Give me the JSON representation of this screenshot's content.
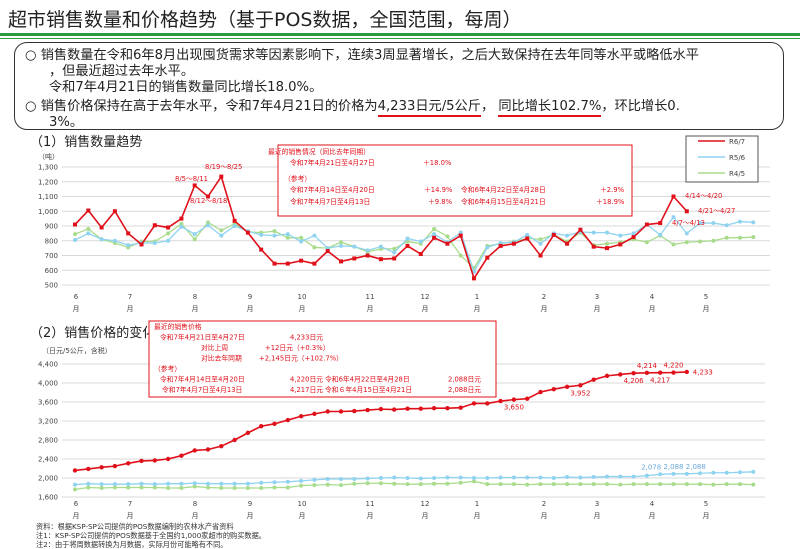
{
  "header": {
    "title": "超市销售数量和价格趋势（基于POS数据，全国范围，每周）"
  },
  "summary": {
    "bullet": "○",
    "p1_line1": "销售数量在令和6年8月出现囤货需求等因素影响下，连续3周显著增长，之后大致保持在去年同等水平或略低水平",
    "p1_line2": "，但最近超过去年水平。",
    "p1_line3": "令和7年4月21日的销售数量同比增长18.0%。",
    "p2_a": "销售价格保持在高于去年水平，令和7年4月21日的价格为",
    "p2_price": "4,233日元/5公斤",
    "p2_b": "，",
    "p2_yoy": "同比增长102.7%",
    "p2_c": "，环比增长0.",
    "p2_d": "3%。"
  },
  "colors": {
    "r6_7": "#e0101a",
    "r5_6": "#8fd3f0",
    "r4_5": "#a8dc8c",
    "accent_green": "#2e9a3e"
  },
  "months": [
    "6",
    "7",
    "8",
    "9",
    "10",
    "11",
    "12",
    "1",
    "2",
    "3",
    "4",
    "5"
  ],
  "month_suffix": "月",
  "legend": [
    "R6/7",
    "R5/6",
    "R4/5"
  ],
  "chart_data": [
    {
      "type": "line",
      "title": "（1）销售数量趋势",
      "ylabel": "（吨）",
      "ylim": [
        500,
        1300
      ],
      "yticks": [
        "1,300",
        "1,200",
        "1,100",
        "1,000",
        "900",
        "800",
        "700",
        "600",
        "500"
      ],
      "x_unit": "week (June to May)",
      "grid": true,
      "legend_position": "top-right",
      "series": [
        {
          "name": "R6/7",
          "values": [
            910,
            1005,
            890,
            1000,
            850,
            775,
            905,
            890,
            950,
            1175,
            1100,
            1235,
            935,
            855,
            740,
            645,
            645,
            665,
            645,
            730,
            660,
            680,
            700,
            675,
            680,
            765,
            710,
            820,
            780,
            835,
            545,
            685,
            765,
            780,
            815,
            700,
            840,
            780,
            875,
            760,
            750,
            775,
            825,
            910,
            920,
            1100,
            1000
          ]
        },
        {
          "name": "R5/6",
          "values": [
            805,
            850,
            810,
            800,
            770,
            785,
            785,
            800,
            895,
            845,
            905,
            835,
            900,
            865,
            840,
            835,
            845,
            795,
            835,
            750,
            765,
            760,
            735,
            760,
            720,
            815,
            795,
            845,
            790,
            855,
            590,
            755,
            785,
            790,
            840,
            780,
            850,
            835,
            860,
            855,
            855,
            835,
            850,
            910,
            840,
            960,
            850,
            920,
            920,
            905,
            930,
            925
          ]
        },
        {
          "name": "R4/5",
          "values": [
            845,
            880,
            810,
            785,
            755,
            795,
            795,
            850,
            915,
            810,
            925,
            870,
            915,
            860,
            855,
            865,
            820,
            820,
            755,
            750,
            790,
            760,
            725,
            745,
            745,
            795,
            780,
            880,
            830,
            700,
            615,
            765,
            780,
            795,
            815,
            810,
            840,
            795,
            855,
            770,
            780,
            790,
            810,
            790,
            835,
            775,
            790,
            795,
            800,
            820,
            820,
            825
          ]
        }
      ],
      "annotations": [
        {
          "text": "8/5～8/11",
          "week_index": 9
        },
        {
          "text": "8/19～8/25",
          "week_index": 11
        },
        {
          "text": "8/12～8/18",
          "week_index": 10
        },
        {
          "text": "4/14～4/20",
          "week_index": 45
        },
        {
          "text": "4/21～4/27",
          "week_index": 46
        },
        {
          "text": "4/7～4/13",
          "week_index": 44
        }
      ],
      "info_box": {
        "title": "最近的销售情况（同比去年同期）",
        "row1_label": "令和7年4月21日至4月27日",
        "row1_value": "＋18.0%",
        "ref": "（参考）",
        "row2_label": "令和7年4月14日至4月20日",
        "row2_value": "＋14.9%",
        "row2_label_b": "令和6年4月22日至4月28日",
        "row2_value_b": "＋2.9%",
        "row3_label": "令和7年4月7日至4月13日",
        "row3_value": "＋9.8%",
        "row3_label_b": "令和6年4月15日至4月21日",
        "row3_value_b": "＋18.9%"
      }
    },
    {
      "type": "line",
      "title": "（2）销售价格的变化",
      "ylabel": "（日元/5公斤，含税）",
      "ylim": [
        1600,
        4400
      ],
      "yticks": [
        "4,400",
        "4,000",
        "3,600",
        "3,200",
        "2,800",
        "2,400",
        "2,000",
        "1,600"
      ],
      "grid": true,
      "series": [
        {
          "name": "R6/7",
          "values": [
            2160,
            2190,
            2225,
            2250,
            2310,
            2360,
            2370,
            2400,
            2470,
            2580,
            2600,
            2670,
            2800,
            2950,
            3090,
            3140,
            3220,
            3300,
            3350,
            3400,
            3400,
            3410,
            3430,
            3450,
            3440,
            3460,
            3460,
            3470,
            3470,
            3480,
            3570,
            3570,
            3620,
            3650,
            3670,
            3810,
            3870,
            3920,
            3952,
            4070,
            4150,
            4180,
            4206,
            4214,
            4217,
            4220,
            4233
          ]
        },
        {
          "name": "R5/6",
          "values": [
            1860,
            1880,
            1870,
            1870,
            1870,
            1880,
            1870,
            1880,
            1880,
            1890,
            1880,
            1880,
            1880,
            1880,
            1900,
            1910,
            1920,
            1940,
            1960,
            1980,
            1980,
            1980,
            1990,
            2000,
            2010,
            2000,
            1990,
            2000,
            2010,
            2010,
            2000,
            2000,
            2010,
            2010,
            2010,
            2010,
            2000,
            2020,
            2010,
            2020,
            2030,
            2030,
            2030,
            2050,
            2078,
            2088,
            2088,
            2100,
            2110,
            2110,
            2120,
            2130
          ]
        },
        {
          "name": "R4/5",
          "values": [
            1760,
            1800,
            1790,
            1800,
            1800,
            1800,
            1800,
            1790,
            1790,
            1820,
            1800,
            1790,
            1790,
            1790,
            1790,
            1800,
            1800,
            1840,
            1850,
            1860,
            1850,
            1880,
            1890,
            1890,
            1880,
            1870,
            1870,
            1880,
            1880,
            1900,
            1930,
            1870,
            1870,
            1870,
            1860,
            1870,
            1870,
            1870,
            1870,
            1870,
            1870,
            1860,
            1870,
            1870,
            1870,
            1870,
            1870,
            1870,
            1860,
            1870,
            1870,
            1860
          ]
        }
      ],
      "data_labels": [
        {
          "series": 0,
          "week_index": 33,
          "text": "3,650",
          "pos": "below"
        },
        {
          "series": 0,
          "week_index": 38,
          "text": "3,952",
          "pos": "below"
        },
        {
          "series": 0,
          "week_index": 42,
          "text": "4,206",
          "pos": "below"
        },
        {
          "series": 0,
          "week_index": 43,
          "text": "4,214",
          "pos": "above"
        },
        {
          "series": 0,
          "week_index": 44,
          "text": "4,217",
          "pos": "below"
        },
        {
          "series": 0,
          "week_index": 45,
          "text": "4,220",
          "pos": "above"
        },
        {
          "series": 0,
          "week_index": 46,
          "text": "4,233",
          "pos": "right"
        },
        {
          "series": 1,
          "week_index": 44,
          "text": "2,078",
          "pos": "above"
        },
        {
          "series": 1,
          "week_index": 45,
          "text": "2,088",
          "pos": "above"
        },
        {
          "series": 1,
          "week_index": 46,
          "text": "2,088",
          "pos": "above"
        }
      ],
      "info_box": {
        "title": "最近的销售价格",
        "row1_label": "令和7年4月21日至4月27日",
        "row1_value": "4,233日元",
        "wow_label": "对比上周",
        "wow_value": "+12日元（+0.3%）",
        "yoy_label": "对比去年同期",
        "yoy_value": "+2,145日元（+102.7%）",
        "ref": "（参考）",
        "row2_label": "令和7年4月14日至4月20日",
        "row2_value": "4,220日元",
        "row2_label_b": "令和6年4月22日至4月28日",
        "row2_value_b": "2,088日元",
        "row3_label": "令和7年4月7日至4月13日",
        "row3_value": "4,217日元",
        "row3_label_b": "令和６年4月15日至4月21日",
        "row3_value_b": "2,088日元"
      }
    }
  ],
  "footer": {
    "source": "资料：根据KSP-SP公司提供的POS数据编制的农林水产省资料",
    "note1": "注1：KSP-SP公司提供的POS数据基于全国约1,000家超市的购买数据。",
    "note2": "注2：由于将周数据转换为月数据，实际月份可能略有不同。"
  }
}
